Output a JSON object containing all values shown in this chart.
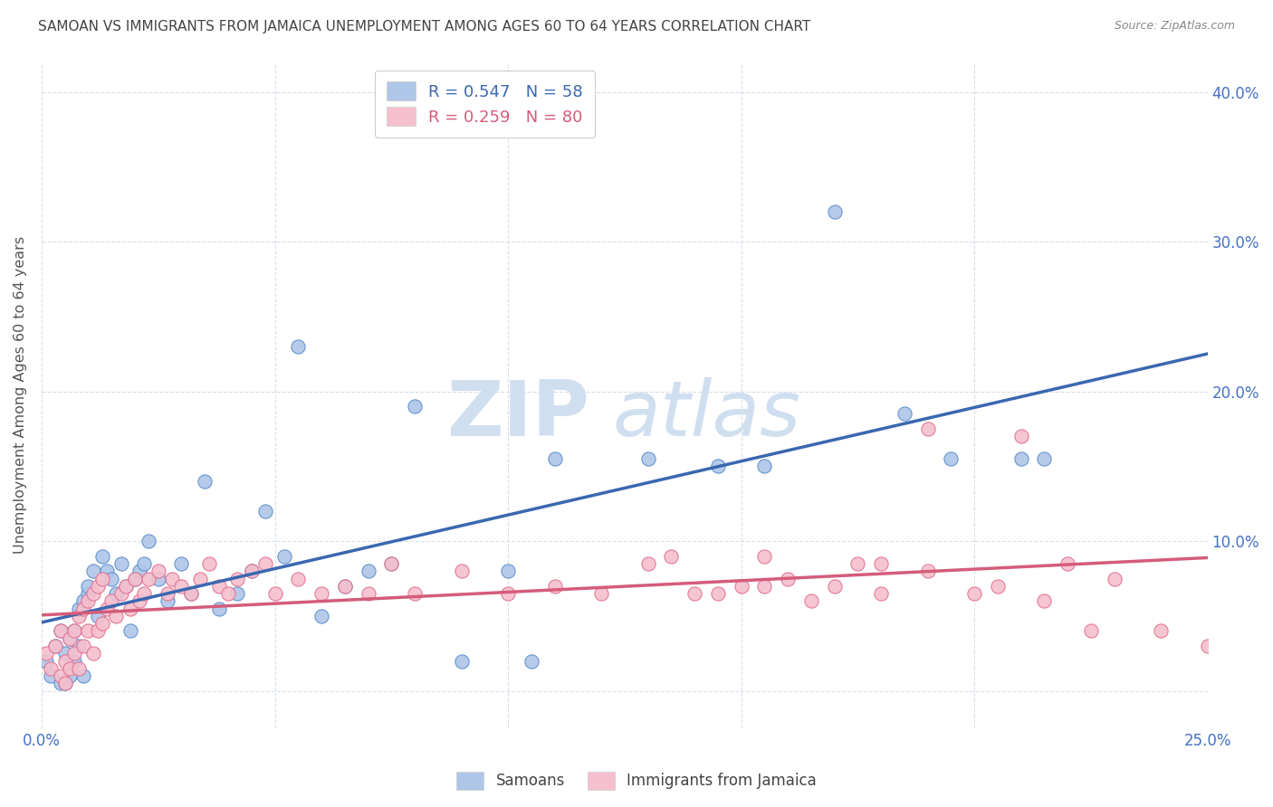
{
  "title": "SAMOAN VS IMMIGRANTS FROM JAMAICA UNEMPLOYMENT AMONG AGES 60 TO 64 YEARS CORRELATION CHART",
  "source": "Source: ZipAtlas.com",
  "ylabel": "Unemployment Among Ages 60 to 64 years",
  "x_min": 0.0,
  "x_max": 0.25,
  "y_min": -0.025,
  "y_max": 0.42,
  "series1_label": "Samoans",
  "series1_face_color": "#aec6e8",
  "series1_edge_color": "#5b8ecb",
  "series1_line_color": "#3a68b0",
  "series1_R": 0.547,
  "series1_N": 58,
  "series2_label": "Immigrants from Jamaica",
  "series2_face_color": "#f5bfce",
  "series2_edge_color": "#e07090",
  "series2_line_color": "#d45c7a",
  "series2_R": 0.259,
  "series2_N": 80,
  "watermark": "ZIPAtlas",
  "watermark_color": "#d0dff0",
  "background_color": "#ffffff",
  "grid_color": "#d8dfe8",
  "title_color": "#444444",
  "source_color": "#888888",
  "axis_label_color": "#555555",
  "tick_label_color": "#4472c4",
  "legend_text_color1": "#3a68b0",
  "legend_text_color2": "#d45c7a",
  "samoans_x": [
    0.001,
    0.002,
    0.003,
    0.004,
    0.004,
    0.005,
    0.005,
    0.006,
    0.006,
    0.007,
    0.007,
    0.008,
    0.008,
    0.009,
    0.009,
    0.01,
    0.01,
    0.011,
    0.012,
    0.013,
    0.014,
    0.015,
    0.016,
    0.017,
    0.018,
    0.019,
    0.02,
    0.021,
    0.022,
    0.023,
    0.025,
    0.027,
    0.03,
    0.032,
    0.035,
    0.038,
    0.042,
    0.045,
    0.048,
    0.052,
    0.055,
    0.06,
    0.065,
    0.07,
    0.075,
    0.08,
    0.09,
    0.1,
    0.105,
    0.11,
    0.13,
    0.145,
    0.155,
    0.17,
    0.185,
    0.195,
    0.21,
    0.215
  ],
  "samoans_y": [
    0.02,
    0.01,
    0.03,
    0.005,
    0.04,
    0.025,
    0.005,
    0.01,
    0.035,
    0.02,
    0.04,
    0.03,
    0.055,
    0.01,
    0.06,
    0.065,
    0.07,
    0.08,
    0.05,
    0.09,
    0.08,
    0.075,
    0.065,
    0.085,
    0.07,
    0.04,
    0.075,
    0.08,
    0.085,
    0.1,
    0.075,
    0.06,
    0.085,
    0.065,
    0.14,
    0.055,
    0.065,
    0.08,
    0.12,
    0.09,
    0.23,
    0.05,
    0.07,
    0.08,
    0.085,
    0.19,
    0.02,
    0.08,
    0.02,
    0.155,
    0.155,
    0.15,
    0.15,
    0.32,
    0.185,
    0.155,
    0.155,
    0.155
  ],
  "jamaica_x": [
    0.001,
    0.002,
    0.003,
    0.004,
    0.004,
    0.005,
    0.005,
    0.006,
    0.006,
    0.007,
    0.007,
    0.008,
    0.008,
    0.009,
    0.009,
    0.01,
    0.01,
    0.011,
    0.011,
    0.012,
    0.012,
    0.013,
    0.013,
    0.014,
    0.015,
    0.016,
    0.017,
    0.018,
    0.019,
    0.02,
    0.021,
    0.022,
    0.023,
    0.025,
    0.027,
    0.028,
    0.03,
    0.032,
    0.034,
    0.036,
    0.038,
    0.04,
    0.042,
    0.045,
    0.048,
    0.05,
    0.055,
    0.06,
    0.065,
    0.07,
    0.075,
    0.08,
    0.09,
    0.1,
    0.11,
    0.12,
    0.13,
    0.14,
    0.15,
    0.16,
    0.17,
    0.18,
    0.19,
    0.2,
    0.21,
    0.22,
    0.23,
    0.24,
    0.25,
    0.135,
    0.155,
    0.175,
    0.19,
    0.155,
    0.165,
    0.145,
    0.18,
    0.205,
    0.215,
    0.225
  ],
  "jamaica_y": [
    0.025,
    0.015,
    0.03,
    0.01,
    0.04,
    0.02,
    0.005,
    0.015,
    0.035,
    0.025,
    0.04,
    0.015,
    0.05,
    0.03,
    0.055,
    0.04,
    0.06,
    0.025,
    0.065,
    0.04,
    0.07,
    0.045,
    0.075,
    0.055,
    0.06,
    0.05,
    0.065,
    0.07,
    0.055,
    0.075,
    0.06,
    0.065,
    0.075,
    0.08,
    0.065,
    0.075,
    0.07,
    0.065,
    0.075,
    0.085,
    0.07,
    0.065,
    0.075,
    0.08,
    0.085,
    0.065,
    0.075,
    0.065,
    0.07,
    0.065,
    0.085,
    0.065,
    0.08,
    0.065,
    0.07,
    0.065,
    0.085,
    0.065,
    0.07,
    0.075,
    0.07,
    0.065,
    0.08,
    0.065,
    0.17,
    0.085,
    0.075,
    0.04,
    0.03,
    0.09,
    0.09,
    0.085,
    0.175,
    0.07,
    0.06,
    0.065,
    0.085,
    0.07,
    0.06,
    0.04
  ]
}
